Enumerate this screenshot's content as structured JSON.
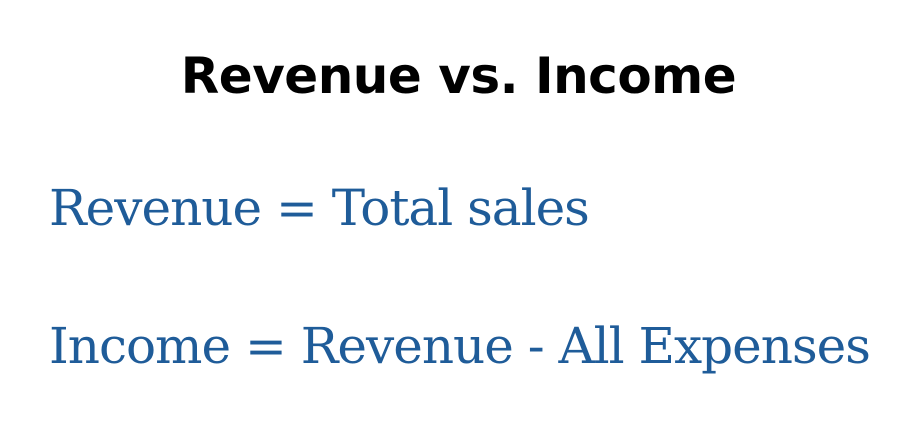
{
  "heading": {
    "title": "Revenue vs. Income"
  },
  "definitions": [
    {
      "text": "Revenue = Total sales"
    },
    {
      "text": "Income = Revenue - All Expenses"
    }
  ],
  "colors": {
    "title": "#000000",
    "definition_text": "#1F5C99",
    "background": "#FFFFFF"
  }
}
